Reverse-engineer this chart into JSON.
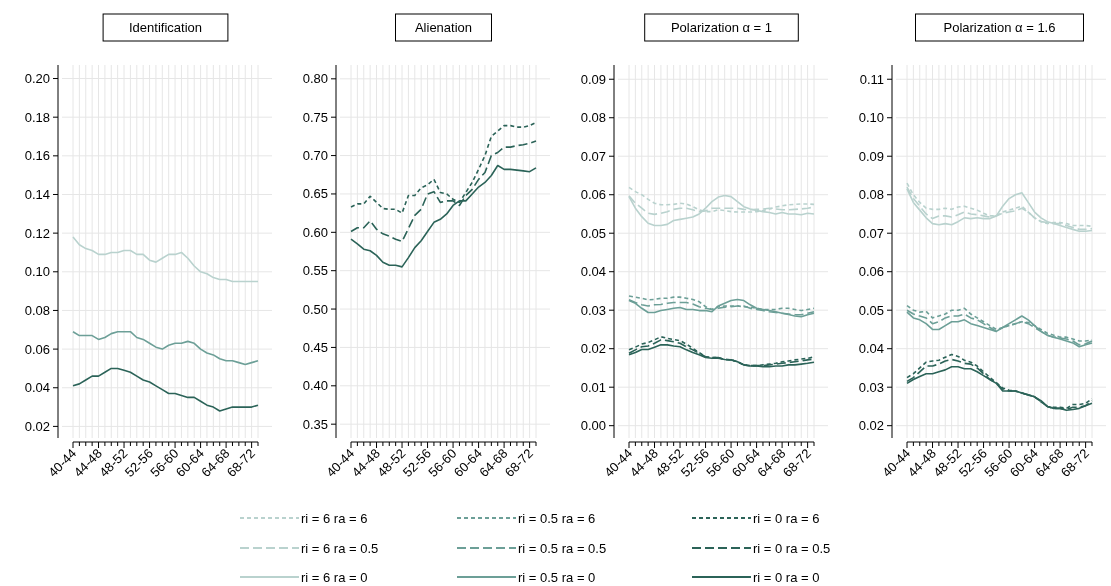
{
  "chart_data": [
    {
      "type": "line",
      "title": "Identification",
      "legend": "bottom",
      "grid": true,
      "categories": [
        "40-44",
        null,
        null,
        null,
        "44-48",
        null,
        null,
        null,
        "48-52",
        null,
        null,
        null,
        "52-56",
        null,
        null,
        null,
        "56-60",
        null,
        null,
        null,
        "60-64",
        null,
        null,
        null,
        "64-68",
        null,
        null,
        null,
        "68-72",
        null
      ],
      "ylim": [
        0.014,
        0.207
      ],
      "yticks": [
        {
          "value": 0.02,
          "label": "0.02"
        },
        {
          "value": 0.04,
          "label": "0.04"
        },
        {
          "value": 0.06,
          "label": "0.06"
        },
        {
          "value": 0.08,
          "label": "0.08"
        },
        {
          "value": 0.1,
          "label": "0.10"
        },
        {
          "value": 0.12,
          "label": "0.12"
        },
        {
          "value": 0.14,
          "label": "0.14"
        },
        {
          "value": 0.16,
          "label": "0.16"
        },
        {
          "value": 0.18,
          "label": "0.18"
        },
        {
          "value": 0.2,
          "label": "0.20"
        }
      ],
      "series": [
        {
          "name": "ri = 6 ra = 6",
          "color": "#b9d2ce",
          "line_style": "dotted",
          "values": [
            null,
            null,
            null,
            null,
            null,
            null,
            null,
            null,
            null,
            null,
            null,
            null,
            null,
            null,
            null,
            null,
            null,
            null,
            null,
            null,
            null,
            null,
            null,
            null,
            null,
            null,
            null,
            null,
            null,
            null
          ]
        },
        {
          "name": "ri = 0.5 ra = 6",
          "color": "#6c9f97",
          "line_style": "dotted",
          "values": [
            null,
            null,
            null,
            null,
            null,
            null,
            null,
            null,
            null,
            null,
            null,
            null,
            null,
            null,
            null,
            null,
            null,
            null,
            null,
            null,
            null,
            null,
            null,
            null,
            null,
            null,
            null,
            null,
            null,
            null
          ]
        },
        {
          "name": "ri = 0 ra = 6",
          "color": "#2b6358",
          "line_style": "dotted",
          "values": [
            null,
            null,
            null,
            null,
            null,
            null,
            null,
            null,
            null,
            null,
            null,
            null,
            null,
            null,
            null,
            null,
            null,
            null,
            null,
            null,
            null,
            null,
            null,
            null,
            null,
            null,
            null,
            null,
            null,
            null
          ]
        },
        {
          "name": "ri = 6 ra = 0.5",
          "color": "#b9d2ce",
          "line_style": "dashed",
          "values": [
            null,
            null,
            null,
            null,
            null,
            null,
            null,
            null,
            null,
            null,
            null,
            null,
            null,
            null,
            null,
            null,
            null,
            null,
            null,
            null,
            null,
            null,
            null,
            null,
            null,
            null,
            null,
            null,
            null,
            null
          ]
        },
        {
          "name": "ri = 0.5 ra = 0.5",
          "color": "#6c9f97",
          "line_style": "dashed",
          "values": [
            null,
            null,
            null,
            null,
            null,
            null,
            null,
            null,
            null,
            null,
            null,
            null,
            null,
            null,
            null,
            null,
            null,
            null,
            null,
            null,
            null,
            null,
            null,
            null,
            null,
            null,
            null,
            null,
            null,
            null
          ]
        },
        {
          "name": "ri = 0 ra = 0.5",
          "color": "#2b6358",
          "line_style": "dashed",
          "values": [
            null,
            null,
            null,
            null,
            null,
            null,
            null,
            null,
            null,
            null,
            null,
            null,
            null,
            null,
            null,
            null,
            null,
            null,
            null,
            null,
            null,
            null,
            null,
            null,
            null,
            null,
            null,
            null,
            null,
            null
          ]
        },
        {
          "name": "ri = 6 ra = 0",
          "color": "#b9d2ce",
          "line_style": "solid",
          "values": [
            0.118,
            0.114,
            0.112,
            0.111,
            0.109,
            0.109,
            0.11,
            0.11,
            0.111,
            0.111,
            0.109,
            0.109,
            0.106,
            0.105,
            0.107,
            0.109,
            0.109,
            0.11,
            0.107,
            0.103,
            0.1,
            0.099,
            0.097,
            0.096,
            0.096,
            0.095,
            0.095,
            0.095,
            0.095,
            0.095
          ]
        },
        {
          "name": "ri = 0.5 ra = 0",
          "color": "#6c9f97",
          "line_style": "solid",
          "values": [
            0.069,
            0.067,
            0.067,
            0.067,
            0.065,
            0.066,
            0.068,
            0.069,
            0.069,
            0.069,
            0.066,
            0.065,
            0.063,
            0.061,
            0.06,
            0.062,
            0.063,
            0.063,
            0.064,
            0.063,
            0.06,
            0.058,
            0.057,
            0.055,
            0.054,
            0.054,
            0.053,
            0.052,
            0.053,
            0.054
          ]
        },
        {
          "name": "ri = 0 ra = 0",
          "color": "#2b6358",
          "line_style": "solid",
          "values": [
            0.041,
            0.042,
            0.044,
            0.046,
            0.046,
            0.048,
            0.05,
            0.05,
            0.049,
            0.048,
            0.046,
            0.044,
            0.043,
            0.041,
            0.039,
            0.037,
            0.037,
            0.036,
            0.035,
            0.035,
            0.033,
            0.031,
            0.03,
            0.028,
            0.029,
            0.03,
            0.03,
            0.03,
            0.03,
            0.031
          ]
        }
      ]
    },
    {
      "type": "line",
      "title": "Alienation",
      "grid": true,
      "categories": [
        "40-44",
        null,
        null,
        null,
        "44-48",
        null,
        null,
        null,
        "48-52",
        null,
        null,
        null,
        "52-56",
        null,
        null,
        null,
        "56-60",
        null,
        null,
        null,
        "60-64",
        null,
        null,
        null,
        "64-68",
        null,
        null,
        null,
        "68-72",
        null
      ],
      "ylim": [
        0.332,
        0.818
      ],
      "yticks": [
        {
          "value": 0.35,
          "label": "0.35"
        },
        {
          "value": 0.4,
          "label": "0.40"
        },
        {
          "value": 0.45,
          "label": "0.45"
        },
        {
          "value": 0.5,
          "label": "0.50"
        },
        {
          "value": 0.55,
          "label": "0.55"
        },
        {
          "value": 0.6,
          "label": "0.60"
        },
        {
          "value": 0.65,
          "label": "0.65"
        },
        {
          "value": 0.7,
          "label": "0.70"
        },
        {
          "value": 0.75,
          "label": "0.75"
        },
        {
          "value": 0.8,
          "label": "0.80"
        }
      ],
      "series": [
        {
          "color": "#b9d2ce",
          "line_style": "dotted",
          "values": [
            null,
            null,
            null,
            null,
            null,
            null,
            null,
            null,
            null,
            null,
            null,
            null,
            null,
            null,
            null,
            null,
            null,
            null,
            null,
            null,
            null,
            null,
            null,
            null,
            null,
            null,
            null,
            null,
            null,
            null
          ]
        },
        {
          "color": "#6c9f97",
          "line_style": "dotted",
          "values": [
            null,
            null,
            null,
            null,
            null,
            null,
            null,
            null,
            null,
            null,
            null,
            null,
            null,
            null,
            null,
            null,
            null,
            null,
            null,
            null,
            null,
            null,
            null,
            null,
            null,
            null,
            null,
            null,
            null,
            null
          ]
        },
        {
          "color": "#2b6358",
          "line_style": "dotted",
          "values": [
            0.633,
            0.637,
            0.637,
            0.647,
            0.639,
            0.631,
            0.63,
            0.63,
            0.625,
            0.648,
            0.648,
            0.658,
            0.662,
            0.669,
            0.652,
            0.65,
            0.643,
            0.639,
            0.652,
            0.665,
            0.682,
            0.7,
            0.725,
            0.732,
            0.739,
            0.739,
            0.737,
            0.737,
            0.739,
            0.743
          ]
        },
        {
          "color": "#b9d2ce",
          "line_style": "dashed",
          "values": [
            null,
            null,
            null,
            null,
            null,
            null,
            null,
            null,
            null,
            null,
            null,
            null,
            null,
            null,
            null,
            null,
            null,
            null,
            null,
            null,
            null,
            null,
            null,
            null,
            null,
            null,
            null,
            null,
            null,
            null
          ]
        },
        {
          "color": "#6c9f97",
          "line_style": "dashed",
          "values": [
            null,
            null,
            null,
            null,
            null,
            null,
            null,
            null,
            null,
            null,
            null,
            null,
            null,
            null,
            null,
            null,
            null,
            null,
            null,
            null,
            null,
            null,
            null,
            null,
            null,
            null,
            null,
            null,
            null,
            null
          ]
        },
        {
          "color": "#2b6358",
          "line_style": "dashed",
          "values": [
            0.601,
            0.606,
            0.606,
            0.615,
            0.604,
            0.598,
            0.595,
            0.591,
            0.588,
            0.605,
            0.622,
            0.63,
            0.65,
            0.653,
            0.639,
            0.641,
            0.641,
            0.635,
            0.648,
            0.656,
            0.669,
            0.678,
            0.7,
            0.704,
            0.711,
            0.711,
            0.713,
            0.714,
            0.716,
            0.719
          ]
        },
        {
          "color": "#b9d2ce",
          "line_style": "solid",
          "values": [
            null,
            null,
            null,
            null,
            null,
            null,
            null,
            null,
            null,
            null,
            null,
            null,
            null,
            null,
            null,
            null,
            null,
            null,
            null,
            null,
            null,
            null,
            null,
            null,
            null,
            null,
            null,
            null,
            null,
            null
          ]
        },
        {
          "color": "#6c9f97",
          "line_style": "solid",
          "values": [
            null,
            null,
            null,
            null,
            null,
            null,
            null,
            null,
            null,
            null,
            null,
            null,
            null,
            null,
            null,
            null,
            null,
            null,
            null,
            null,
            null,
            null,
            null,
            null,
            null,
            null,
            null,
            null,
            null,
            null
          ]
        },
        {
          "color": "#2b6358",
          "line_style": "solid",
          "values": [
            0.591,
            0.585,
            0.578,
            0.576,
            0.57,
            0.561,
            0.557,
            0.557,
            0.555,
            0.567,
            0.58,
            0.589,
            0.601,
            0.613,
            0.617,
            0.624,
            0.635,
            0.641,
            0.641,
            0.65,
            0.659,
            0.665,
            0.674,
            0.687,
            0.682,
            0.682,
            0.681,
            0.68,
            0.679,
            0.684
          ]
        }
      ]
    },
    {
      "type": "line",
      "title": "Polarization α = 1",
      "grid": true,
      "categories": [
        "40-44",
        null,
        null,
        null,
        "44-48",
        null,
        null,
        null,
        "48-52",
        null,
        null,
        null,
        "52-56",
        null,
        null,
        null,
        "56-60",
        null,
        null,
        null,
        "60-64",
        null,
        null,
        null,
        "64-68",
        null,
        null,
        null,
        "68-72",
        null
      ],
      "ylim": [
        -0.0032,
        0.0937
      ],
      "yticks": [
        {
          "value": 0,
          "label": "0.00"
        },
        {
          "value": 0.01,
          "label": "0.01"
        },
        {
          "value": 0.02,
          "label": "0.02"
        },
        {
          "value": 0.03,
          "label": "0.03"
        },
        {
          "value": 0.04,
          "label": "0.04"
        },
        {
          "value": 0.05,
          "label": "0.05"
        },
        {
          "value": 0.06,
          "label": "0.06"
        },
        {
          "value": 0.07,
          "label": "0.07"
        },
        {
          "value": 0.08,
          "label": "0.08"
        },
        {
          "value": 0.09,
          "label": "0.09"
        }
      ],
      "series": [
        {
          "color": "#b9d2ce",
          "line_style": "dotted",
          "values": [
            0.0619,
            0.0608,
            0.06,
            0.0588,
            0.0578,
            0.0574,
            0.0574,
            0.0575,
            0.0578,
            0.0576,
            0.0569,
            0.0561,
            0.0556,
            0.0556,
            0.0561,
            0.0559,
            0.0556,
            0.0555,
            0.0555,
            0.0555,
            0.0556,
            0.0559,
            0.0563,
            0.0568,
            0.0571,
            0.0574,
            0.0575,
            0.0576,
            0.0576,
            0.0575
          ]
        },
        {
          "color": "#6c9f97",
          "line_style": "dotted",
          "values": [
            0.0337,
            0.0334,
            0.0331,
            0.0327,
            0.0328,
            0.0331,
            0.0331,
            0.0334,
            0.0334,
            0.0331,
            0.0328,
            0.0322,
            0.0309,
            0.0302,
            0.0309,
            0.0311,
            0.0311,
            0.0311,
            0.0309,
            0.0308,
            0.0305,
            0.0302,
            0.0302,
            0.0302,
            0.0305,
            0.0305,
            0.0302,
            0.0299,
            0.0302,
            0.0305
          ]
        },
        {
          "color": "#2b6358",
          "line_style": "dotted",
          "values": [
            0.0197,
            0.0204,
            0.0212,
            0.0216,
            0.0223,
            0.0231,
            0.0227,
            0.0224,
            0.0221,
            0.0212,
            0.0201,
            0.019,
            0.0179,
            0.0177,
            0.0177,
            0.0172,
            0.0171,
            0.0166,
            0.0158,
            0.0156,
            0.0156,
            0.0158,
            0.016,
            0.0162,
            0.0166,
            0.0168,
            0.0171,
            0.0173,
            0.0175,
            0.0179
          ]
        },
        {
          "color": "#b9d2ce",
          "line_style": "dashed",
          "values": [
            0.0597,
            0.0578,
            0.0565,
            0.0552,
            0.0549,
            0.0552,
            0.0556,
            0.0562,
            0.0565,
            0.0565,
            0.0561,
            0.0556,
            0.0558,
            0.0565,
            0.0565,
            0.0565,
            0.0565,
            0.0565,
            0.0562,
            0.0561,
            0.0562,
            0.0563,
            0.0565,
            0.0563,
            0.0561,
            0.0561,
            0.0562,
            0.0563,
            0.0565,
            0.0568
          ]
        },
        {
          "color": "#6c9f97",
          "line_style": "dashed",
          "values": [
            0.0327,
            0.032,
            0.0314,
            0.0311,
            0.0314,
            0.0315,
            0.0318,
            0.032,
            0.032,
            0.032,
            0.0316,
            0.0309,
            0.0305,
            0.0302,
            0.0305,
            0.0308,
            0.0309,
            0.0311,
            0.0311,
            0.0305,
            0.0302,
            0.0299,
            0.0296,
            0.0294,
            0.0292,
            0.029,
            0.0288,
            0.0288,
            0.0292,
            0.0296
          ]
        },
        {
          "color": "#2b6358",
          "line_style": "dashed",
          "values": [
            0.0188,
            0.0197,
            0.0205,
            0.0207,
            0.0214,
            0.0223,
            0.0221,
            0.0218,
            0.0214,
            0.0205,
            0.0197,
            0.0188,
            0.0179,
            0.0177,
            0.0177,
            0.0172,
            0.0171,
            0.0166,
            0.0158,
            0.0156,
            0.0156,
            0.0156,
            0.0158,
            0.016,
            0.0162,
            0.0164,
            0.0166,
            0.0168,
            0.0171,
            0.0173
          ]
        },
        {
          "color": "#b9d2ce",
          "line_style": "solid",
          "values": [
            0.0595,
            0.0565,
            0.0543,
            0.0526,
            0.052,
            0.052,
            0.0523,
            0.0533,
            0.0536,
            0.0539,
            0.0542,
            0.055,
            0.0565,
            0.0582,
            0.0594,
            0.0598,
            0.0595,
            0.0582,
            0.0569,
            0.0563,
            0.0559,
            0.0556,
            0.0554,
            0.055,
            0.0554,
            0.055,
            0.055,
            0.0548,
            0.0552,
            0.055
          ]
        },
        {
          "color": "#6c9f97",
          "line_style": "solid",
          "values": [
            0.0325,
            0.0318,
            0.0305,
            0.0294,
            0.0294,
            0.0299,
            0.0302,
            0.0305,
            0.0307,
            0.0302,
            0.0302,
            0.0299,
            0.0299,
            0.0296,
            0.0311,
            0.0318,
            0.0325,
            0.0328,
            0.0325,
            0.0314,
            0.0305,
            0.0302,
            0.0299,
            0.0296,
            0.0292,
            0.0289,
            0.0285,
            0.0283,
            0.0288,
            0.0292
          ]
        },
        {
          "color": "#2b6358",
          "line_style": "solid",
          "values": [
            0.0184,
            0.019,
            0.0198,
            0.0198,
            0.0204,
            0.021,
            0.021,
            0.0207,
            0.0205,
            0.0197,
            0.019,
            0.0184,
            0.0177,
            0.0175,
            0.0175,
            0.0172,
            0.0171,
            0.0166,
            0.0158,
            0.0155,
            0.0155,
            0.0153,
            0.0153,
            0.0155,
            0.0155,
            0.0158,
            0.0158,
            0.016,
            0.0162,
            0.0165
          ]
        }
      ]
    },
    {
      "type": "line",
      "title": "Polarization α = 1.6",
      "grid": true,
      "categories": [
        "40-44",
        null,
        null,
        null,
        "44-48",
        null,
        null,
        null,
        "48-52",
        null,
        null,
        null,
        "52-56",
        null,
        null,
        null,
        "56-60",
        null,
        null,
        null,
        "60-64",
        null,
        null,
        null,
        "64-68",
        null,
        null,
        null,
        "68-72",
        null
      ],
      "ylim": [
        0.0168,
        0.1137
      ],
      "yticks": [
        {
          "value": 0.02,
          "label": "0.02"
        },
        {
          "value": 0.03,
          "label": "0.03"
        },
        {
          "value": 0.04,
          "label": "0.04"
        },
        {
          "value": 0.05,
          "label": "0.05"
        },
        {
          "value": 0.06,
          "label": "0.06"
        },
        {
          "value": 0.07,
          "label": "0.07"
        },
        {
          "value": 0.08,
          "label": "0.08"
        },
        {
          "value": 0.09,
          "label": "0.09"
        },
        {
          "value": 0.1,
          "label": "0.10"
        },
        {
          "value": 0.11,
          "label": "0.11"
        }
      ],
      "series": [
        {
          "color": "#b9d2ce",
          "line_style": "dotted",
          "values": [
            0.083,
            0.08,
            0.078,
            0.0765,
            0.0762,
            0.0762,
            0.0765,
            0.0762,
            0.0768,
            0.077,
            0.0765,
            0.076,
            0.0752,
            0.0745,
            0.0745,
            0.0755,
            0.076,
            0.0765,
            0.077,
            0.0755,
            0.074,
            0.073,
            0.0725,
            0.0728,
            0.0728,
            0.0725,
            0.072,
            0.072,
            0.072,
            0.0718
          ]
        },
        {
          "color": "#6c9f97",
          "line_style": "dotted",
          "values": [
            0.0512,
            0.05,
            0.0495,
            0.0497,
            0.048,
            0.0485,
            0.049,
            0.05,
            0.05,
            0.0505,
            0.049,
            0.048,
            0.047,
            0.046,
            0.045,
            0.0455,
            0.046,
            0.0465,
            0.047,
            0.0468,
            0.046,
            0.045,
            0.044,
            0.0435,
            0.043,
            0.043,
            0.0425,
            0.042,
            0.042,
            0.0423
          ]
        },
        {
          "color": "#2b6358",
          "line_style": "dotted",
          "values": [
            0.0325,
            0.0335,
            0.035,
            0.0365,
            0.0368,
            0.037,
            0.0378,
            0.0385,
            0.038,
            0.037,
            0.0365,
            0.0355,
            0.034,
            0.0325,
            0.0312,
            0.0298,
            0.0292,
            0.029,
            0.0285,
            0.028,
            0.0275,
            0.0262,
            0.025,
            0.0248,
            0.0248,
            0.0245,
            0.0255,
            0.0255,
            0.0258,
            0.027
          ]
        },
        {
          "color": "#b9d2ce",
          "line_style": "dashed",
          "values": [
            0.082,
            0.079,
            0.077,
            0.075,
            0.0738,
            0.0745,
            0.0745,
            0.0742,
            0.0748,
            0.0755,
            0.075,
            0.0748,
            0.0745,
            0.0742,
            0.0745,
            0.0752,
            0.0755,
            0.0758,
            0.0765,
            0.0755,
            0.074,
            0.073,
            0.0728,
            0.0725,
            0.0725,
            0.072,
            0.0715,
            0.071,
            0.071,
            0.0712
          ]
        },
        {
          "color": "#6c9f97",
          "line_style": "dashed",
          "values": [
            0.05,
            0.049,
            0.0485,
            0.048,
            0.0465,
            0.047,
            0.048,
            0.0485,
            0.0485,
            0.049,
            0.048,
            0.0475,
            0.0465,
            0.0455,
            0.0445,
            0.0455,
            0.046,
            0.0465,
            0.047,
            0.0465,
            0.0455,
            0.0445,
            0.0435,
            0.043,
            0.0428,
            0.0425,
            0.042,
            0.041,
            0.0413,
            0.042
          ]
        },
        {
          "color": "#2b6358",
          "line_style": "dashed",
          "values": [
            0.0315,
            0.0325,
            0.034,
            0.0355,
            0.0355,
            0.036,
            0.0368,
            0.0372,
            0.0368,
            0.0362,
            0.036,
            0.035,
            0.0335,
            0.032,
            0.031,
            0.0295,
            0.029,
            0.029,
            0.0285,
            0.028,
            0.0275,
            0.0262,
            0.025,
            0.0245,
            0.0245,
            0.0242,
            0.0248,
            0.0248,
            0.0252,
            0.0265
          ]
        },
        {
          "color": "#b9d2ce",
          "line_style": "solid",
          "values": [
            0.0815,
            0.078,
            0.076,
            0.074,
            0.0725,
            0.0722,
            0.0725,
            0.0722,
            0.073,
            0.074,
            0.0738,
            0.074,
            0.0738,
            0.0738,
            0.0745,
            0.077,
            0.079,
            0.08,
            0.0805,
            0.078,
            0.0755,
            0.074,
            0.073,
            0.0725,
            0.072,
            0.0715,
            0.071,
            0.0705,
            0.0705,
            0.0707
          ]
        },
        {
          "color": "#6c9f97",
          "line_style": "solid",
          "values": [
            0.0495,
            0.048,
            0.0475,
            0.0465,
            0.045,
            0.045,
            0.046,
            0.047,
            0.047,
            0.0475,
            0.0465,
            0.046,
            0.0455,
            0.045,
            0.0445,
            0.0455,
            0.0465,
            0.0475,
            0.0485,
            0.0475,
            0.046,
            0.0445,
            0.0435,
            0.043,
            0.0425,
            0.042,
            0.0415,
            0.0405,
            0.041,
            0.0415
          ]
        },
        {
          "color": "#2b6358",
          "line_style": "solid",
          "values": [
            0.031,
            0.032,
            0.0328,
            0.0335,
            0.0335,
            0.034,
            0.0345,
            0.0353,
            0.0353,
            0.0348,
            0.0348,
            0.034,
            0.033,
            0.032,
            0.031,
            0.029,
            0.029,
            0.029,
            0.0285,
            0.028,
            0.0275,
            0.0265,
            0.025,
            0.0245,
            0.0245,
            0.024,
            0.0242,
            0.0245,
            0.0252,
            0.0258
          ]
        }
      ]
    }
  ]
}
